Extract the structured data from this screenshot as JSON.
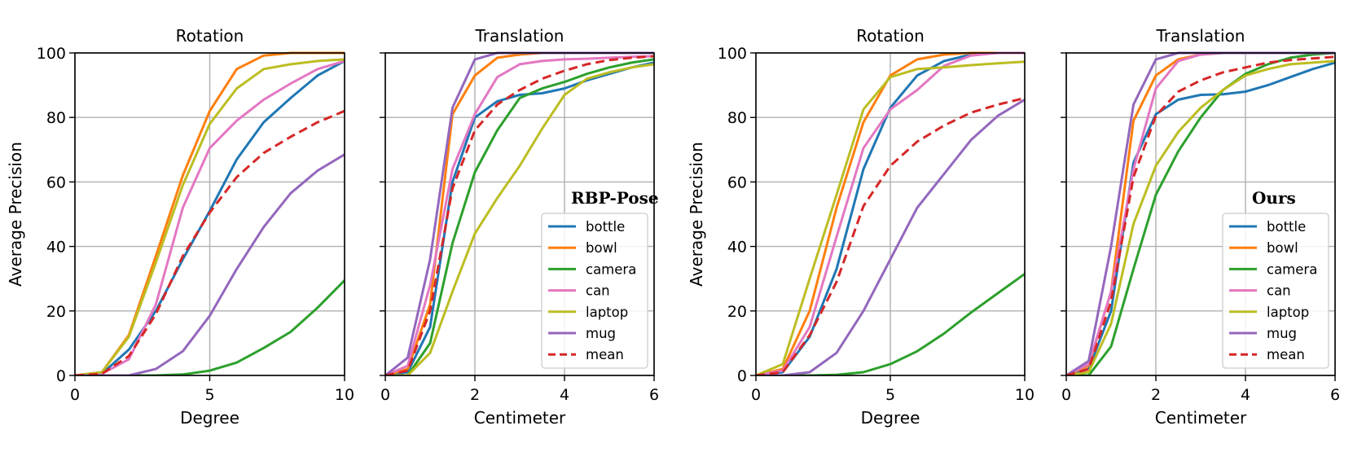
{
  "figure": {
    "series_styles": [
      {
        "name": "bottle",
        "color": "#1f77b4",
        "dash": false
      },
      {
        "name": "bowl",
        "color": "#ff7f0e",
        "dash": false
      },
      {
        "name": "camera",
        "color": "#2ca02c",
        "dash": false
      },
      {
        "name": "can",
        "color": "#e377c2",
        "dash": false
      },
      {
        "name": "laptop",
        "color": "#bcbd22",
        "dash": false
      },
      {
        "name": "mug",
        "color": "#9467bd",
        "dash": false
      },
      {
        "name": "mean",
        "color": "#d62728",
        "dash": true
      }
    ],
    "colors": {
      "grid": "#b0b0b0",
      "axis": "#000000",
      "legend_border": "#cccccc"
    }
  },
  "chart_data": [
    {
      "type": "line",
      "title": "Rotation",
      "xlabel": "Degree",
      "ylabel": "Average Precision",
      "xlim": [
        0,
        10
      ],
      "ylim": [
        0,
        100
      ],
      "xticks": [
        0,
        5,
        10
      ],
      "yticks": [
        0,
        20,
        40,
        60,
        80,
        100
      ],
      "method_label": "",
      "legend": false,
      "x": [
        0,
        1,
        2,
        3,
        4,
        5,
        6,
        7,
        8,
        9,
        10
      ],
      "series": [
        {
          "name": "bottle",
          "values": [
            0,
            0.5,
            8,
            20,
            36,
            51,
            67,
            78.5,
            86,
            93,
            97.5
          ]
        },
        {
          "name": "bowl",
          "values": [
            0,
            1,
            12.5,
            37,
            62,
            82,
            95,
            99.2,
            100,
            100,
            100
          ]
        },
        {
          "name": "camera",
          "values": [
            0,
            0,
            0,
            0,
            0.3,
            1.5,
            4,
            8.5,
            13.5,
            21,
            29.5
          ]
        },
        {
          "name": "can",
          "values": [
            0,
            0.5,
            5,
            22,
            52,
            70.5,
            79,
            85.5,
            90.5,
            95,
            97.5
          ]
        },
        {
          "name": "laptop",
          "values": [
            0,
            1,
            12,
            35,
            59,
            78,
            89,
            95,
            96.5,
            97.5,
            98
          ]
        },
        {
          "name": "mug",
          "values": [
            0,
            0,
            0,
            2,
            7.5,
            18.5,
            33,
            46,
            56.5,
            63.5,
            68.5
          ]
        },
        {
          "name": "mean",
          "values": [
            0,
            0.5,
            6,
            19,
            37,
            50.5,
            61.5,
            69,
            74,
            78.5,
            82
          ]
        }
      ]
    },
    {
      "type": "line",
      "title": "Translation",
      "xlabel": "Centimeter",
      "ylabel": "",
      "xlim": [
        0,
        6
      ],
      "ylim": [
        0,
        100
      ],
      "xticks": [
        0,
        2,
        4,
        6
      ],
      "yticks": [
        0,
        20,
        40,
        60,
        80,
        100
      ],
      "method_label": "RBP-Pose",
      "legend": true,
      "x": [
        0,
        0.5,
        1,
        1.5,
        2,
        2.5,
        3,
        3.5,
        4,
        4.5,
        5,
        5.5,
        6
      ],
      "series": [
        {
          "name": "bottle",
          "values": [
            0,
            1,
            15,
            60,
            80,
            85,
            87,
            87.5,
            89,
            91.5,
            93.5,
            95.5,
            97
          ]
        },
        {
          "name": "bowl",
          "values": [
            0,
            2,
            22,
            81,
            93,
            98.5,
            99.5,
            100,
            100,
            100,
            100,
            100,
            100
          ]
        },
        {
          "name": "camera",
          "values": [
            0,
            0,
            10,
            41,
            63,
            76,
            86,
            89,
            91,
            93.5,
            95.5,
            97,
            98
          ]
        },
        {
          "name": "can",
          "values": [
            0,
            3,
            28,
            64,
            81,
            92.5,
            96.5,
            97.5,
            98,
            98.2,
            98.5,
            98.8,
            99
          ]
        },
        {
          "name": "laptop",
          "values": [
            0,
            0,
            7,
            26,
            44,
            55,
            65,
            76.5,
            87,
            92,
            94,
            95.5,
            96.5
          ]
        },
        {
          "name": "mug",
          "values": [
            0,
            5.5,
            36,
            83,
            98,
            100,
            100,
            100,
            100,
            100,
            100,
            100,
            100
          ]
        },
        {
          "name": "mean",
          "values": [
            0,
            1.5,
            20,
            58,
            76,
            84,
            88.5,
            92,
            94.5,
            96.5,
            97.8,
            98.5,
            99
          ]
        }
      ]
    },
    {
      "type": "line",
      "title": "Rotation",
      "xlabel": "Degree",
      "ylabel": "Average Precision",
      "xlim": [
        0,
        10
      ],
      "ylim": [
        0,
        100
      ],
      "xticks": [
        0,
        5,
        10
      ],
      "yticks": [
        0,
        20,
        40,
        60,
        80,
        100
      ],
      "method_label": "",
      "legend": false,
      "x": [
        0,
        1,
        2,
        3,
        4,
        5,
        6,
        7,
        8,
        9,
        10
      ],
      "series": [
        {
          "name": "bottle",
          "values": [
            0,
            1,
            12,
            33,
            64,
            83,
            93,
            97.5,
            99.5,
            100,
            100
          ]
        },
        {
          "name": "bowl",
          "values": [
            0,
            2,
            20,
            52,
            78.5,
            93,
            98,
            99.5,
            100,
            100,
            100
          ]
        },
        {
          "name": "camera",
          "values": [
            0,
            0,
            0,
            0.2,
            1,
            3.5,
            7.5,
            13,
            19.5,
            25.5,
            31.5
          ]
        },
        {
          "name": "can",
          "values": [
            0,
            1.5,
            15,
            43,
            70.5,
            82.5,
            88.5,
            96,
            99.2,
            100,
            100
          ]
        },
        {
          "name": "laptop",
          "values": [
            0,
            3.5,
            30,
            56,
            82.5,
            92.5,
            95,
            95.5,
            96.2,
            96.8,
            97.3
          ]
        },
        {
          "name": "mug",
          "values": [
            0,
            0,
            1,
            7,
            20,
            36,
            52,
            62.5,
            73,
            80.5,
            85.5
          ]
        },
        {
          "name": "mean",
          "values": [
            0,
            1,
            12.5,
            29,
            52.5,
            65,
            72.5,
            77.5,
            81.5,
            84,
            86
          ]
        }
      ]
    },
    {
      "type": "line",
      "title": "Translation",
      "xlabel": "Centimeter",
      "ylabel": "",
      "xlim": [
        0,
        6
      ],
      "ylim": [
        0,
        100
      ],
      "xticks": [
        0,
        2,
        4,
        6
      ],
      "yticks": [
        0,
        20,
        40,
        60,
        80,
        100
      ],
      "method_label": "Ours",
      "legend": true,
      "x": [
        0,
        0.5,
        1,
        1.5,
        2,
        2.5,
        3,
        3.5,
        4,
        4.5,
        5,
        5.5,
        6
      ],
      "series": [
        {
          "name": "bottle",
          "values": [
            0,
            2,
            20,
            66,
            81,
            85.5,
            87,
            87.2,
            88,
            90,
            92.5,
            95,
            97
          ]
        },
        {
          "name": "bowl",
          "values": [
            0,
            3,
            26,
            79,
            93,
            98,
            99.5,
            100,
            100,
            100,
            100,
            100,
            100
          ]
        },
        {
          "name": "camera",
          "values": [
            0,
            0,
            9,
            33,
            56,
            69.5,
            80,
            88.5,
            93.5,
            96.5,
            98.5,
            99.5,
            100
          ]
        },
        {
          "name": "can",
          "values": [
            0,
            3.5,
            26,
            64,
            89,
            97.5,
            99.5,
            100,
            100,
            100,
            100,
            100,
            100
          ]
        },
        {
          "name": "laptop",
          "values": [
            0,
            1,
            16,
            47,
            65,
            75.5,
            83,
            88.5,
            93,
            95,
            96.5,
            97,
            97.5
          ]
        },
        {
          "name": "mug",
          "values": [
            0,
            4.5,
            40,
            84,
            98,
            100,
            100,
            100,
            100,
            100,
            100,
            100,
            100
          ]
        },
        {
          "name": "mean",
          "values": [
            0,
            2,
            23,
            61.5,
            80.5,
            88,
            91.5,
            94,
            95.5,
            97,
            97.8,
            98.3,
            98.8
          ]
        }
      ]
    }
  ]
}
